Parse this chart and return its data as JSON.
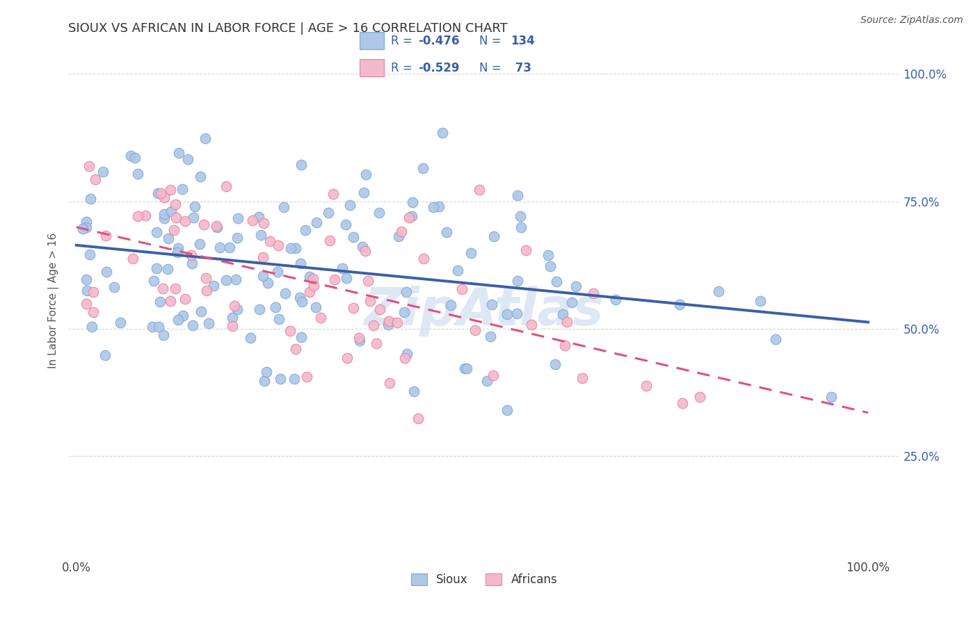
{
  "title": "SIOUX VS AFRICAN IN LABOR FORCE | AGE > 16 CORRELATION CHART",
  "source_text": "Source: ZipAtlas.com",
  "ylabel": "In Labor Force | Age > 16",
  "sioux_R": -0.476,
  "sioux_N": 134,
  "african_R": -0.529,
  "african_N": 73,
  "sioux_color": "#aec6e8",
  "sioux_edge_color": "#7aa8d4",
  "african_color": "#f4b8cb",
  "african_edge_color": "#e8809a",
  "sioux_line_color": "#3a5fa8",
  "african_line_color": "#e05080",
  "watermark_color": "#c8d8ee",
  "background_color": "#ffffff",
  "grid_color": "#d8d8d8",
  "legend_text_color": "#3a5fa8",
  "legend_label_sioux": "Sioux",
  "legend_label_african": "Africans",
  "title_color": "#333333",
  "ylabel_color": "#555555",
  "ytick_color": "#3a5fa8"
}
